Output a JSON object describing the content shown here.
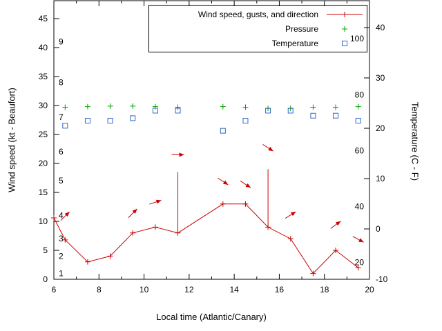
{
  "chart_data": {
    "type": "line",
    "xlabel": "Local time (Atlantic/Canary)",
    "ylabel_left": "Wind speed (kt - Beaufort)",
    "ylabel_right": "Temperature (C - F)",
    "x_axis": {
      "min": 6,
      "max": 20,
      "major_ticks": [
        6,
        8,
        10,
        12,
        14,
        16,
        18,
        20
      ],
      "minor_ticks": [
        7,
        9,
        11,
        13,
        15,
        17,
        19
      ]
    },
    "y_left_axis": {
      "min": 0,
      "max": 48,
      "ticks": [
        0,
        5,
        10,
        15,
        20,
        25,
        30,
        35,
        40,
        45
      ],
      "beaufort_labels": [
        {
          "label": "1",
          "kt": 1
        },
        {
          "label": "2",
          "kt": 4
        },
        {
          "label": "3",
          "kt": 7
        },
        {
          "label": "4",
          "kt": 11
        },
        {
          "label": "5",
          "kt": 17
        },
        {
          "label": "6",
          "kt": 22
        },
        {
          "label": "7",
          "kt": 28
        },
        {
          "label": "8",
          "kt": 34
        },
        {
          "label": "9",
          "kt": 41
        }
      ]
    },
    "y_right_axis": {
      "min": -10,
      "max": 45.5,
      "ticks_c": [
        -10,
        0,
        10,
        20,
        30,
        40
      ],
      "inner_f_labels": [
        20,
        40,
        60,
        80,
        100
      ]
    },
    "legend": {
      "entries": [
        {
          "label": "Wind speed, gusts, and direction",
          "series": "wind",
          "color": "#cc0000",
          "marker": "plus-line"
        },
        {
          "label": "Pressure",
          "series": "pressure",
          "color": "#00a000",
          "marker": "plus"
        },
        {
          "label": "Temperature",
          "series": "temperature",
          "color": "#3366cc",
          "marker": "open-square"
        }
      ]
    },
    "series": {
      "wind_speed": {
        "color": "#cc0000",
        "units": "kt",
        "points": [
          [
            6,
            10.6
          ],
          [
            6.5,
            6.8
          ],
          [
            7.5,
            3
          ],
          [
            8.5,
            4
          ],
          [
            9.5,
            8
          ],
          [
            10.5,
            9
          ],
          [
            11.5,
            8
          ],
          [
            13.5,
            13
          ],
          [
            14.5,
            13
          ],
          [
            15.5,
            9
          ],
          [
            16.5,
            7
          ],
          [
            17.5,
            1
          ],
          [
            18.5,
            5
          ],
          [
            19.5,
            2
          ]
        ]
      },
      "wind_gusts": {
        "color": "#cc0000",
        "units": "kt",
        "impulses": [
          [
            11.5,
            8,
            18.5
          ],
          [
            15.5,
            9,
            19
          ]
        ]
      },
      "wind_direction_arrows": {
        "color": "#cc0000",
        "arrows": [
          {
            "x": 6.5,
            "kt": 10.9,
            "angle_deg": 45
          },
          {
            "x": 9.5,
            "kt": 11.4,
            "angle_deg": 45
          },
          {
            "x": 10.5,
            "kt": 13.3,
            "angle_deg": 18
          },
          {
            "x": 11.5,
            "kt": 21.5,
            "angle_deg": 0
          },
          {
            "x": 13.5,
            "kt": 16.9,
            "angle_deg": -33
          },
          {
            "x": 14.5,
            "kt": 16.4,
            "angle_deg": -33
          },
          {
            "x": 15.5,
            "kt": 22.7,
            "angle_deg": -33
          },
          {
            "x": 16.5,
            "kt": 11.1,
            "angle_deg": 32
          },
          {
            "x": 18.5,
            "kt": 9.4,
            "angle_deg": 36
          },
          {
            "x": 19.5,
            "kt": 6.9,
            "angle_deg": -28
          }
        ]
      },
      "pressure": {
        "color": "#00a000",
        "note": "no pressure scale shown; values read against left axis",
        "x": [
          6.5,
          7.5,
          8.5,
          9.5,
          10.5,
          11.5,
          13.5,
          14.5,
          15.5,
          16.5,
          17.5,
          18.5,
          19.5
        ],
        "values_left_axis_units": [
          29.7,
          29.8,
          29.9,
          29.9,
          29.8,
          29.7,
          29.8,
          29.7,
          29.5,
          29.5,
          29.7,
          29.7,
          29.8
        ]
      },
      "temperature": {
        "color": "#3366cc",
        "units": "C",
        "x": [
          6.5,
          7.5,
          8.5,
          9.5,
          10.5,
          11.5,
          13.5,
          14.5,
          15.5,
          16.5,
          17.5,
          18.5,
          19.5
        ],
        "values_c": [
          20.5,
          21.5,
          21.5,
          22,
          23.5,
          23.5,
          19.5,
          21.5,
          23.5,
          23.5,
          22.5,
          22.5,
          21.5
        ]
      }
    }
  }
}
